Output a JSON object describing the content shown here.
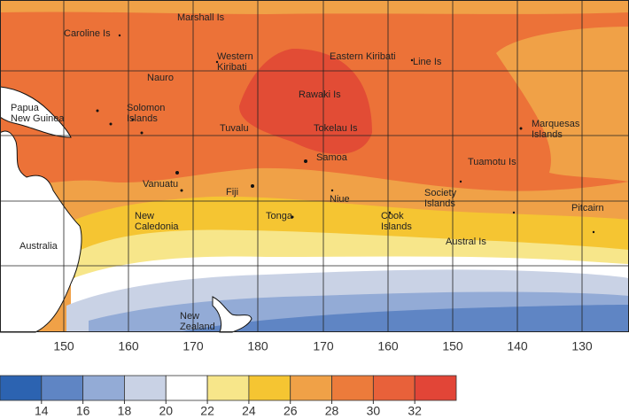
{
  "map": {
    "labels": [
      {
        "lines": [
          "Caroline Is"
        ]
      },
      {
        "lines": [
          "Marshall Is"
        ]
      },
      {
        "lines": [
          "Western",
          "Kiribati"
        ]
      },
      {
        "lines": [
          "Eastern Kiribati"
        ]
      },
      {
        "lines": [
          "Line Is"
        ]
      },
      {
        "lines": [
          "Nauro"
        ]
      },
      {
        "lines": [
          "Papua",
          "New Guinea"
        ]
      },
      {
        "lines": [
          "Solomon",
          "Islands"
        ]
      },
      {
        "lines": [
          "Rawaki Is"
        ]
      },
      {
        "lines": [
          "Tuvalu"
        ]
      },
      {
        "lines": [
          "Tokelau Is"
        ]
      },
      {
        "lines": [
          "Marquesas",
          "Islands"
        ]
      },
      {
        "lines": [
          "Samoa"
        ]
      },
      {
        "lines": [
          "Tuamotu Is"
        ]
      },
      {
        "lines": [
          "Vanuatu"
        ]
      },
      {
        "lines": [
          "Fiji"
        ]
      },
      {
        "lines": [
          "Niue"
        ]
      },
      {
        "lines": [
          "Society",
          "Islands"
        ]
      },
      {
        "lines": [
          "Tonga"
        ]
      },
      {
        "lines": [
          "New",
          "Caledonia"
        ]
      },
      {
        "lines": [
          "Cook",
          "Islands"
        ]
      },
      {
        "lines": [
          "Pitcairn"
        ]
      },
      {
        "lines": [
          "Australia"
        ]
      },
      {
        "lines": [
          "Austral Is"
        ]
      },
      {
        "lines": [
          "New",
          "Zealand"
        ]
      }
    ],
    "longitude_ticks": [
      150,
      160,
      170,
      180,
      170,
      160,
      150,
      140,
      130
    ]
  },
  "colorbar": {
    "ticks": [
      14,
      16,
      18,
      20,
      22,
      24,
      26,
      28,
      30,
      32
    ],
    "colors": [
      "#2c63b1",
      "#5f85c4",
      "#93abd6",
      "#c9d2e5",
      "#ffffff",
      "#f7e68a",
      "#f5c532",
      "#f0a147",
      "#ec7b3b",
      "#e8613a",
      "#e24537"
    ]
  }
}
